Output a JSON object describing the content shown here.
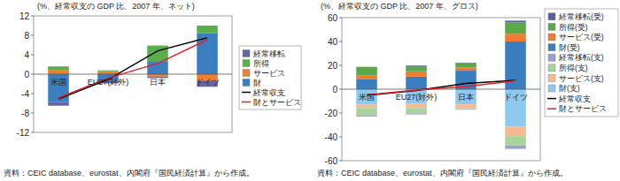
{
  "chart_data": [
    {
      "type": "bar",
      "stacked": true,
      "grid": false,
      "legend": "right",
      "ylabel": "(%、経常収支の GDP 比、2007 年、ネット)",
      "source": "資料：CEIC database、eurostat、内閣府『国民経済計算』から作成。",
      "categories": [
        "米国",
        "EU27(対外)",
        "日本",
        "ドイツ"
      ],
      "ylim": [
        -12,
        12
      ],
      "yticks": [
        -12,
        -8,
        -4,
        0,
        4,
        8,
        12
      ],
      "series": [
        {
          "name": "経常移転",
          "color": "#6566a9",
          "values": [
            -0.8,
            -0.5,
            -0.3,
            -1.3
          ]
        },
        {
          "name": "所得",
          "color": "#5cae4c",
          "values": [
            0.7,
            0.2,
            3.2,
            1.6
          ]
        },
        {
          "name": "サービス",
          "color": "#f07f32",
          "values": [
            0.9,
            0.6,
            -0.5,
            -1.3
          ]
        },
        {
          "name": "財",
          "color": "#3b7fc0",
          "values": [
            -5.7,
            -1.4,
            2.7,
            8.4
          ]
        },
        {
          "name": "経常収支",
          "type": "line",
          "color": "#000000",
          "values": [
            -5.1,
            -1.1,
            4.8,
            7.5
          ]
        },
        {
          "name": "財とサービス",
          "type": "line",
          "color": "#e0202a",
          "values": [
            -4.9,
            -0.8,
            2.2,
            7.1
          ]
        }
      ]
    },
    {
      "type": "bar",
      "stacked": true,
      "grid": false,
      "legend": "right",
      "ylabel": "(%、経常収支の GDP 比、2007 年、グロス)",
      "source": "資料：CEIC database、eurostat、内閣府『国民経済計算』から作成。",
      "categories": [
        "米国",
        "EU27(対外)",
        "日本",
        "ドイツ"
      ],
      "ylim": [
        -60,
        60
      ],
      "yticks": [
        -60,
        -40,
        -20,
        0,
        20,
        40,
        60
      ],
      "series": [
        {
          "name": "経常移転(受)",
          "color": "#5b5ea6",
          "values": [
            0.2,
            0.5,
            0.2,
            1.5
          ]
        },
        {
          "name": "所得(受)",
          "color": "#5aa84a",
          "values": [
            6.8,
            4.5,
            3.8,
            9.5
          ]
        },
        {
          "name": "サービス(受)",
          "color": "#f07c30",
          "values": [
            3.5,
            4.5,
            2.8,
            6.5
          ]
        },
        {
          "name": "財(受)",
          "color": "#3a7ebf",
          "values": [
            8.2,
            10.5,
            15.5,
            40.0
          ]
        },
        {
          "name": "経常移転(支)",
          "color": "#9c9dd0",
          "values": [
            -1.0,
            -0.9,
            -0.5,
            -2.8
          ]
        },
        {
          "name": "所得(支)",
          "color": "#a7d49b",
          "values": [
            -6.1,
            -4.5,
            -0.6,
            -7.9
          ]
        },
        {
          "name": "サービス(支)",
          "color": "#f8b98f",
          "values": [
            -2.8,
            -3.8,
            -3.3,
            -7.9
          ]
        },
        {
          "name": "財(支)",
          "color": "#8dc8ee",
          "values": [
            -13.0,
            -12.0,
            -12.8,
            -31.5
          ]
        },
        {
          "name": "経常収支",
          "type": "line",
          "color": "#000000",
          "values": [
            -5.1,
            -1.1,
            4.8,
            7.5
          ]
        },
        {
          "name": "財とサービス",
          "type": "line",
          "color": "#e0202a",
          "values": [
            -4.9,
            -0.8,
            2.2,
            7.1
          ]
        }
      ]
    }
  ]
}
